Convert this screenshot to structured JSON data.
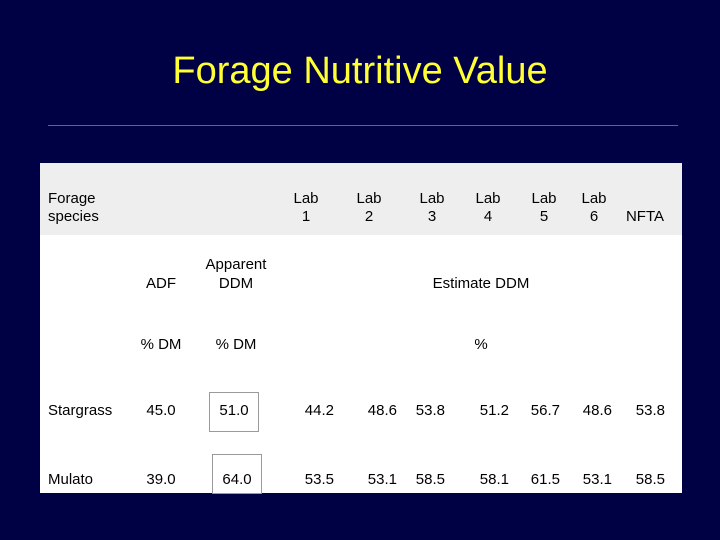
{
  "title": "Forage Nutritive Value",
  "header": {
    "forage_label_1": "Forage",
    "forage_label_2": "species",
    "labs": [
      {
        "l1": "Lab",
        "l2": "1"
      },
      {
        "l1": "Lab",
        "l2": "2"
      },
      {
        "l1": "Lab",
        "l2": "3"
      },
      {
        "l1": "Lab",
        "l2": "4"
      },
      {
        "l1": "Lab",
        "l2": "5"
      },
      {
        "l1": "Lab",
        "l2": "6"
      }
    ],
    "nfta": "NFTA"
  },
  "subheader": {
    "adf": "ADF",
    "apparent_1": "Apparent",
    "apparent_2": "DDM",
    "estimate": "Estimate DDM"
  },
  "units": {
    "adf": "% DM",
    "apparent": "% DM",
    "estimate": "%"
  },
  "rows": [
    {
      "name": "Stargrass",
      "adf": "45.0",
      "apparent": "51.0",
      "values": [
        "44.2",
        "48.6",
        "53.8",
        "51.2",
        "56.7",
        "48.6",
        "53.8"
      ]
    },
    {
      "name": "Mulato",
      "adf": "39.0",
      "apparent": "64.0",
      "values": [
        "53.5",
        "53.1",
        "58.5",
        "58.1",
        "61.5",
        "53.1",
        "58.5"
      ]
    }
  ]
}
